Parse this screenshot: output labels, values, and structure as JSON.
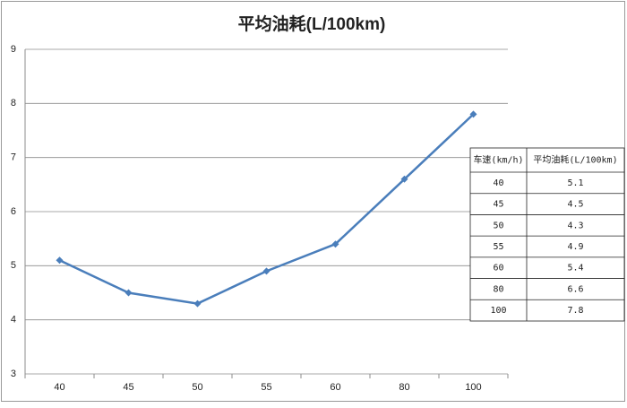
{
  "chart_data": {
    "type": "line",
    "title": "平均油耗(L/100km)",
    "categories": [
      "40",
      "45",
      "50",
      "55",
      "60",
      "80",
      "100"
    ],
    "values": [
      5.1,
      4.5,
      4.3,
      4.9,
      5.4,
      6.6,
      7.8
    ],
    "color": "#4a7ebb",
    "ylim": [
      3,
      9
    ],
    "yticks": [
      3,
      4,
      5,
      6,
      7,
      8,
      9
    ],
    "grid": true,
    "table_header": [
      "车速(km/h)",
      "平均油耗(L/100km)"
    ]
  }
}
